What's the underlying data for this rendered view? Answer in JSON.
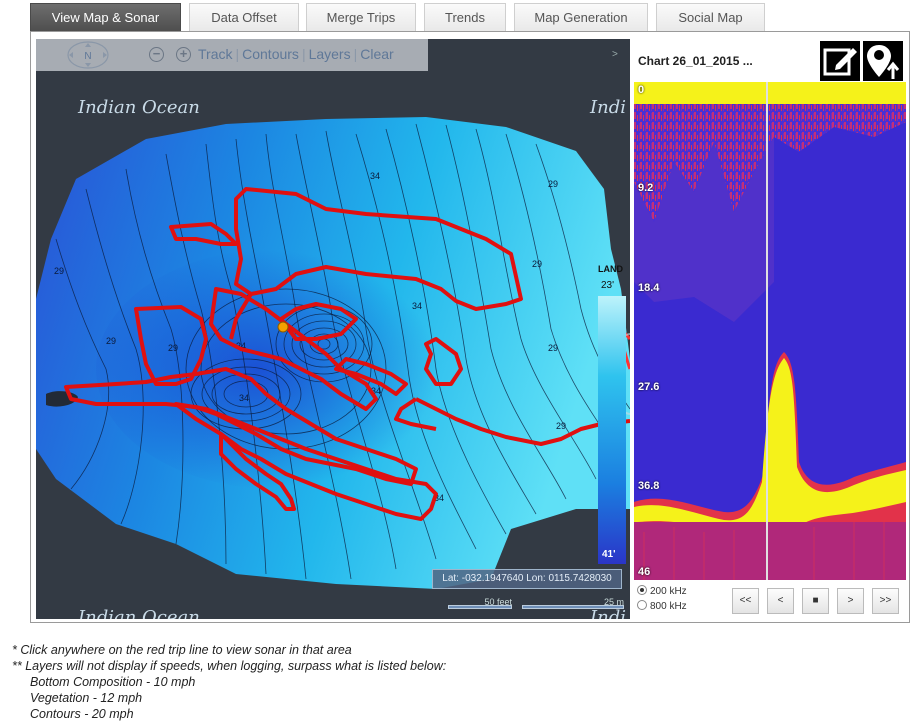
{
  "tabs": [
    {
      "label": "View Map & Sonar",
      "active": true
    },
    {
      "label": "Data Offset",
      "active": false
    },
    {
      "label": "Merge Trips",
      "active": false
    },
    {
      "label": "Trends",
      "active": false
    },
    {
      "label": "Map Generation",
      "active": false
    },
    {
      "label": "Social Map",
      "active": false
    }
  ],
  "map": {
    "compass_label": "N",
    "toolbar": {
      "zoom_out": "−",
      "zoom_in": "+",
      "track": "Track",
      "contours": "Contours",
      "layers": "Layers",
      "clear": "Clear",
      "separator": "|"
    },
    "collapse_glyph": ">",
    "ocean_labels": [
      "Indian Ocean",
      "Indi",
      "Indian Ocean",
      "Indi"
    ],
    "contour_labels": [
      "34",
      "29",
      "29",
      "29",
      "34",
      "29",
      "29",
      "34",
      "34",
      "29",
      "29",
      "34",
      "34"
    ],
    "legend": {
      "title": "LAND",
      "top_value": "23'",
      "bottom_value": "41'"
    },
    "coordinates": "Lat: -032.1947640 Lon: 0115.7428030",
    "scale_feet": "50 feet",
    "scale_m": "25 m",
    "colors": {
      "trip_line": "#e01010",
      "marker": "#f4a000",
      "land": "#333a44"
    }
  },
  "sonar": {
    "chart_title": "Chart 26_01_2015 ...",
    "edit_icon": "edit-icon",
    "pin_icon": "map-pin-upload-icon",
    "depth_labels": [
      "0",
      "9.2",
      "18.4",
      "27.6",
      "36.8",
      "46"
    ],
    "frequencies": [
      {
        "label": "200 kHz",
        "selected": true
      },
      {
        "label": "800 kHz",
        "selected": false
      }
    ],
    "nav_buttons": [
      "<<",
      "<",
      "■",
      ">",
      ">>"
    ]
  },
  "notes": [
    "* Click anywhere on the red trip line to view sonar in that area",
    "** Layers will not display if speeds, when logging, surpass what is listed below:",
    "Bottom Composition - 10 mph",
    "Vegetation - 12 mph",
    "Contours - 20 mph"
  ]
}
